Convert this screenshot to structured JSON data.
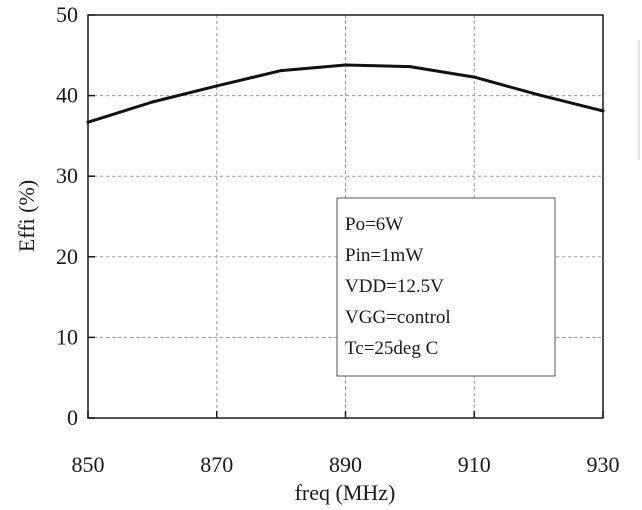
{
  "chart_data": {
    "type": "line",
    "title": "",
    "xlabel": "freq (MHz)",
    "ylabel": "Effi (%)",
    "xlim": [
      850,
      930
    ],
    "ylim": [
      0,
      50
    ],
    "xticks": [
      850,
      870,
      890,
      910,
      930
    ],
    "yticks": [
      0,
      10,
      20,
      30,
      40,
      50
    ],
    "grid": true,
    "series": [
      {
        "x": [
          850,
          860,
          870,
          880,
          890,
          900,
          910,
          920,
          930
        ],
        "y": [
          36.7,
          39.2,
          41.2,
          43.1,
          43.8,
          43.6,
          42.3,
          40.1,
          38.1
        ]
      }
    ],
    "annotation": [
      "Po=6W",
      "Pin=1mW",
      "VDD=12.5V",
      "VGG=control",
      "Tc=25deg C"
    ]
  }
}
